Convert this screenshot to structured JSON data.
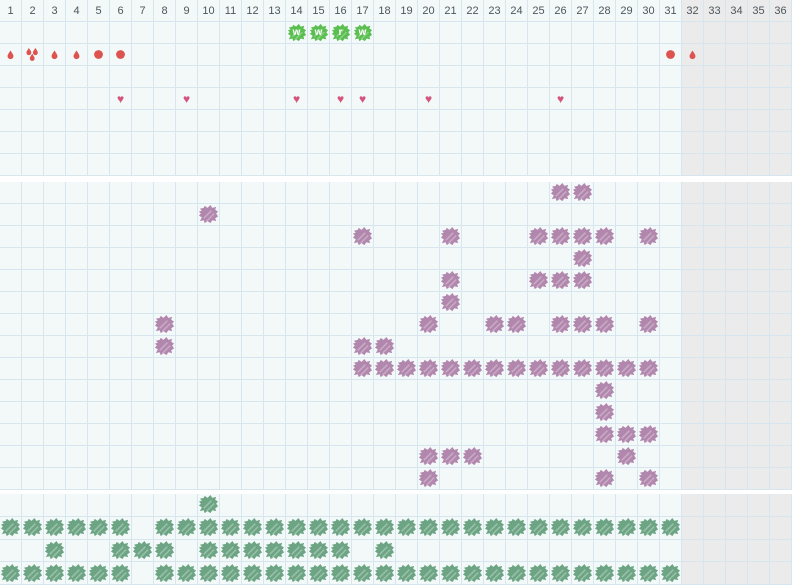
{
  "grid": {
    "columns": 36,
    "active_columns": 31,
    "cell_size": 22
  },
  "colors": {
    "bg_active": "#f3f8f9",
    "bg_inactive": "#ebebeb",
    "grid_line": "#d7e6ee",
    "header_text": "#4d565c",
    "flow_red": "#dc5350",
    "heart_pink": "#d6537c",
    "badge_green": "#5abf50",
    "purple_mark": "#b287ad",
    "green_mark": "#6da584"
  },
  "header": {
    "days": [
      1,
      2,
      3,
      4,
      5,
      6,
      7,
      8,
      9,
      10,
      11,
      12,
      13,
      14,
      15,
      16,
      17,
      18,
      19,
      20,
      21,
      22,
      23,
      24,
      25,
      26,
      27,
      28,
      29,
      30,
      31,
      32,
      33,
      34,
      35,
      36
    ]
  },
  "symptoms_section": {
    "rows": 7,
    "badges": {
      "row": 1,
      "items": [
        {
          "col": 14,
          "letter": "w"
        },
        {
          "col": 15,
          "letter": "w"
        },
        {
          "col": 16,
          "letter": "r"
        },
        {
          "col": 17,
          "letter": "w"
        }
      ]
    },
    "flow": {
      "row": 2,
      "items": [
        {
          "col": 1,
          "icon": "droplet"
        },
        {
          "col": 2,
          "icon": "droplet-triple"
        },
        {
          "col": 3,
          "icon": "droplet"
        },
        {
          "col": 4,
          "icon": "droplet"
        },
        {
          "col": 5,
          "icon": "dot"
        },
        {
          "col": 6,
          "icon": "dot"
        },
        {
          "col": 31,
          "icon": "dot"
        },
        {
          "col": 32,
          "icon": "droplet"
        }
      ]
    },
    "hearts": {
      "row": 4,
      "cols": [
        6,
        9,
        14,
        16,
        17,
        20,
        26
      ]
    }
  },
  "purple_section": {
    "rows": 14,
    "marks": [
      [
        26,
        27
      ],
      [
        10
      ],
      [
        17,
        21,
        25,
        26,
        27,
        28,
        30
      ],
      [
        27
      ],
      [
        21,
        25,
        26,
        27
      ],
      [
        21
      ],
      [
        8,
        20,
        23,
        24,
        26,
        27,
        28,
        30
      ],
      [
        8,
        17,
        18
      ],
      [
        17,
        18,
        19,
        20,
        21,
        22,
        23,
        24,
        25,
        26,
        27,
        28,
        29,
        30
      ],
      [
        28
      ],
      [
        28
      ],
      [
        28,
        29,
        30
      ],
      [
        20,
        21,
        22,
        29
      ],
      [
        20,
        28,
        30
      ]
    ]
  },
  "green_section": {
    "rows": 4,
    "marks": [
      [
        10
      ],
      [
        1,
        2,
        3,
        4,
        5,
        6,
        8,
        9,
        10,
        11,
        12,
        13,
        14,
        15,
        16,
        17,
        18,
        19,
        20,
        21,
        22,
        23,
        24,
        25,
        26,
        27,
        28,
        29,
        30,
        31
      ],
      [
        3,
        6,
        7,
        8,
        10,
        11,
        12,
        13,
        14,
        15,
        16,
        18
      ],
      [
        1,
        2,
        3,
        4,
        5,
        6,
        8,
        9,
        10,
        11,
        12,
        13,
        14,
        15,
        16,
        17,
        18,
        19,
        20,
        21,
        22,
        23,
        24,
        25,
        26,
        27,
        28,
        29,
        30,
        31
      ]
    ]
  }
}
